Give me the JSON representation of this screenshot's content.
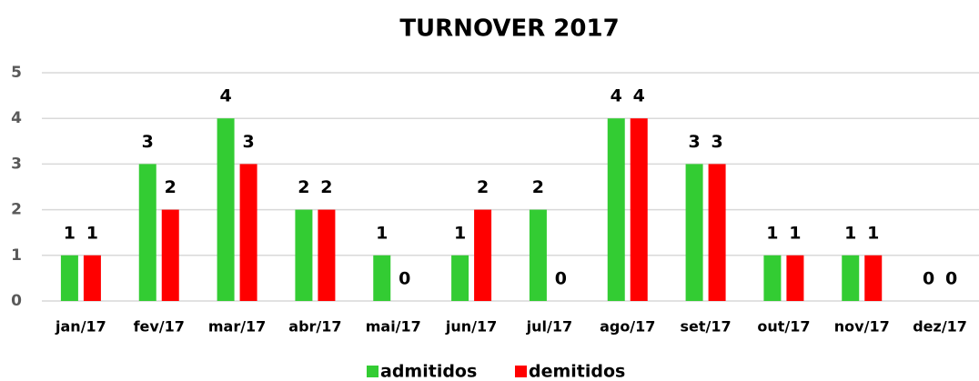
{
  "chart_data": {
    "type": "bar",
    "title": "TURNOVER 2017",
    "categories": [
      "jan/17",
      "fev/17",
      "mar/17",
      "abr/17",
      "mai/17",
      "jun/17",
      "jul/17",
      "ago/17",
      "set/17",
      "out/17",
      "nov/17",
      "dez/17"
    ],
    "series": [
      {
        "name": "admitidos",
        "color": "#33cc33",
        "values": [
          1,
          3,
          4,
          2,
          1,
          1,
          2,
          4,
          3,
          1,
          1,
          0
        ]
      },
      {
        "name": "demitidos",
        "color": "#ff0000",
        "values": [
          1,
          2,
          3,
          2,
          0,
          2,
          0,
          4,
          3,
          1,
          1,
          0
        ]
      }
    ],
    "ylim": [
      0,
      5
    ],
    "yticks": [
      0,
      1,
      2,
      3,
      4,
      5
    ],
    "grid": true,
    "legend": "bottom"
  }
}
